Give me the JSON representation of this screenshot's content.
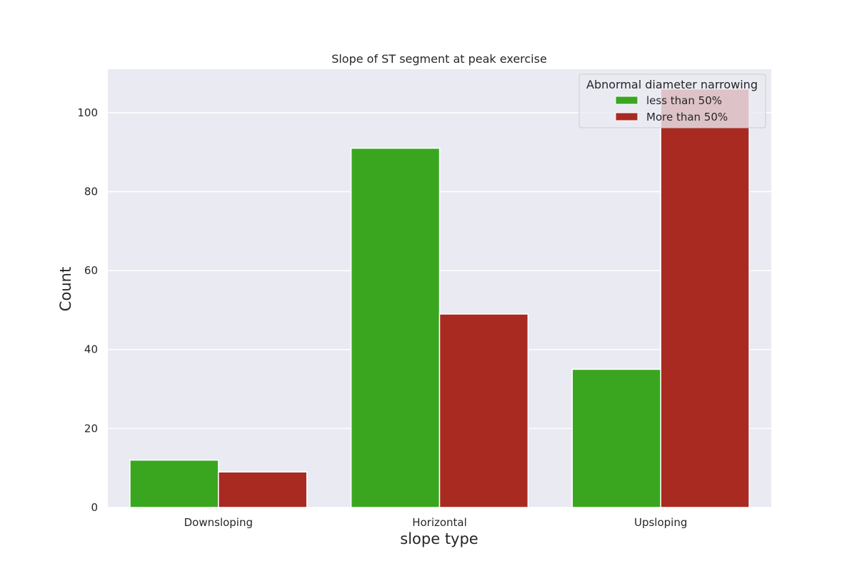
{
  "chart_data": {
    "type": "bar",
    "title": "Slope of ST segment at peak exercise",
    "xlabel": "slope type",
    "ylabel": "Count",
    "categories": [
      "Downsloping",
      "Horizontal",
      "Upsloping"
    ],
    "series": [
      {
        "name": "less than 50%",
        "values": [
          12,
          91,
          35
        ],
        "color": "#3aa620"
      },
      {
        "name": "More than 50%",
        "values": [
          9,
          49,
          106
        ],
        "color": "#a82a21"
      }
    ],
    "ylim": [
      0,
      111
    ],
    "yticks": [
      0,
      20,
      40,
      60,
      80,
      100
    ],
    "grid": true,
    "background_color": "#eaeaf2",
    "legend": {
      "title": "Abnormal diameter narrowing",
      "placement": "top-right"
    }
  }
}
